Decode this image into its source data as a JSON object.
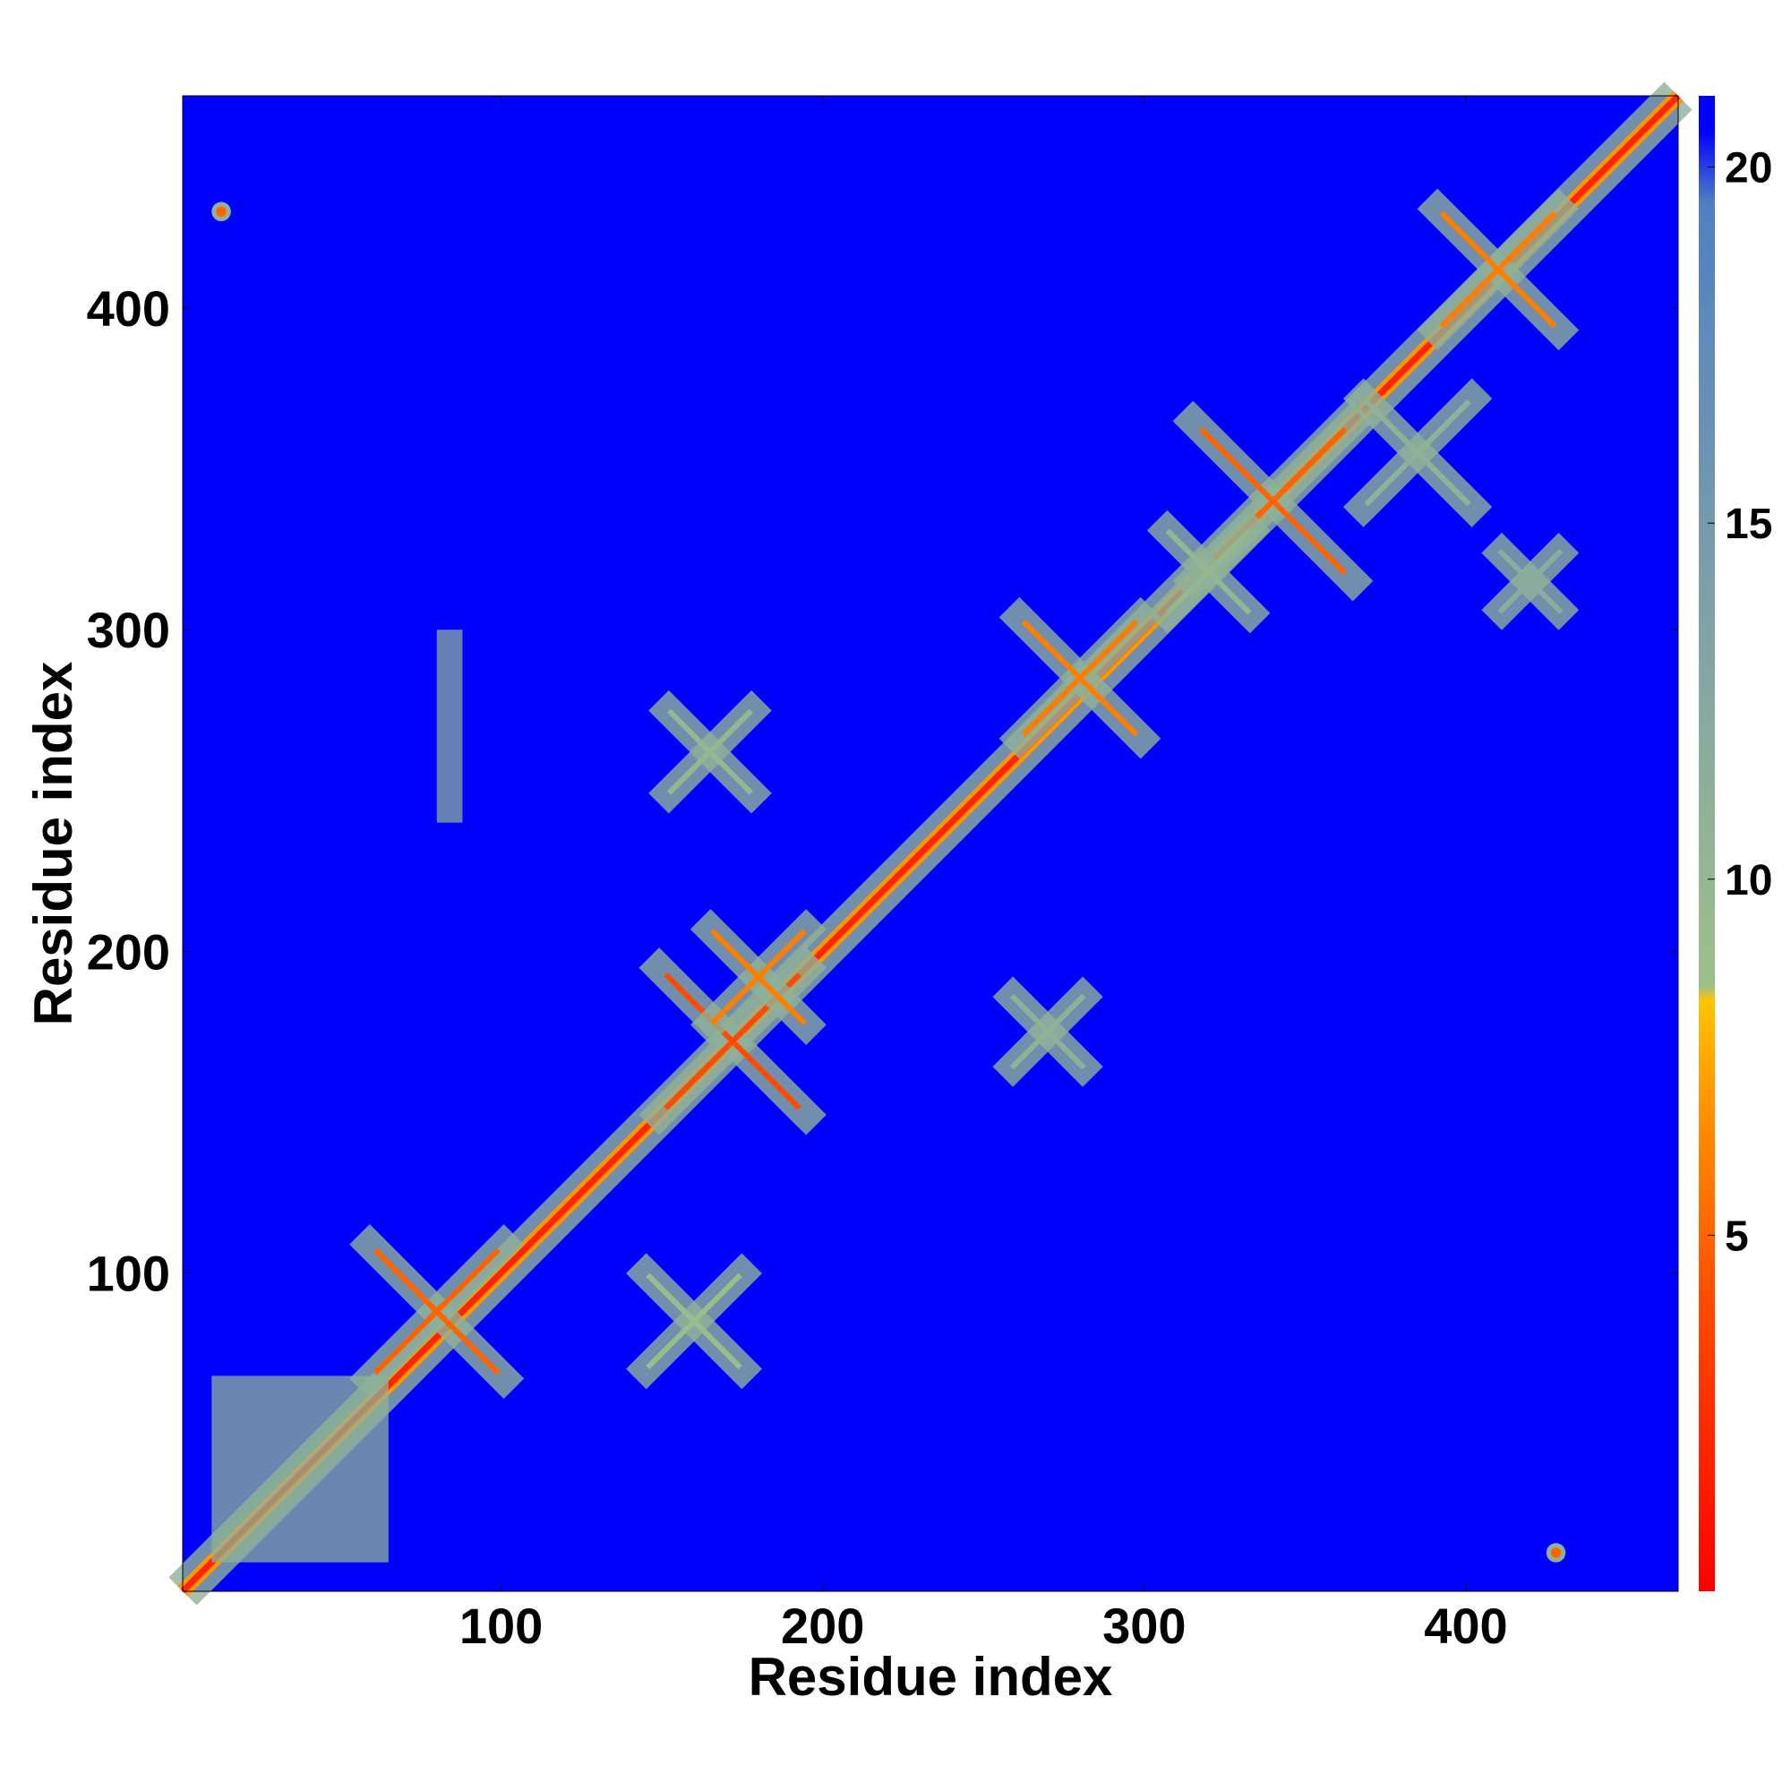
{
  "chart_data": {
    "type": "heatmap",
    "title": "",
    "xlabel": "Residue index",
    "ylabel": "Residue index",
    "xlim": [
      1,
      466
    ],
    "ylim": [
      1,
      466
    ],
    "xticks": [
      100,
      200,
      300,
      400
    ],
    "yticks": [
      100,
      200,
      300,
      400
    ],
    "colorbar": {
      "range": [
        0,
        21
      ],
      "ticks": [
        5,
        10,
        15,
        20
      ],
      "stops": [
        {
          "value": 0,
          "color": "#ff0000"
        },
        {
          "value": 4,
          "color": "#ff4a00"
        },
        {
          "value": 7,
          "color": "#ff9800"
        },
        {
          "value": 8.3,
          "color": "#ffc400"
        },
        {
          "value": 8.5,
          "color": "#9cc08a"
        },
        {
          "value": 14,
          "color": "#7f9fa8"
        },
        {
          "value": 19.5,
          "color": "#4f7fc2"
        },
        {
          "value": 20.5,
          "color": "#0000ff"
        },
        {
          "value": 21,
          "color": "#0000ff"
        }
      ]
    },
    "background_value": 21,
    "background_color": "#0000ff",
    "features": [
      {
        "kind": "diagonal",
        "from": 1,
        "to": 466,
        "value": 2,
        "halo_value": 11
      },
      {
        "kind": "x",
        "center": [
          80,
          88
        ],
        "size": 24,
        "value": 5
      },
      {
        "kind": "x",
        "center": [
          172,
          172
        ],
        "size": 26,
        "value": 4
      },
      {
        "kind": "x",
        "center": [
          180,
          192
        ],
        "size": 18,
        "value": 6
      },
      {
        "kind": "x",
        "center": [
          280,
          285
        ],
        "size": 22,
        "value": 6
      },
      {
        "kind": "x",
        "center": [
          340,
          340
        ],
        "size": 28,
        "value": 5
      },
      {
        "kind": "x",
        "center": [
          410,
          412
        ],
        "size": 22,
        "value": 6
      },
      {
        "kind": "x",
        "center": [
          160,
          85
        ],
        "size": 18,
        "value": 9
      },
      {
        "kind": "x",
        "center": [
          165,
          262
        ],
        "size": 16,
        "value": 10
      },
      {
        "kind": "x",
        "center": [
          270,
          175
        ],
        "size": 14,
        "value": 11
      },
      {
        "kind": "x",
        "center": [
          320,
          318
        ],
        "size": 16,
        "value": 10
      },
      {
        "kind": "x",
        "center": [
          385,
          355
        ],
        "size": 20,
        "value": 11
      },
      {
        "kind": "x",
        "center": [
          420,
          315
        ],
        "size": 12,
        "value": 12
      },
      {
        "kind": "block",
        "x": [
          10,
          65
        ],
        "y": [
          10,
          68
        ],
        "value": 11
      },
      {
        "kind": "block",
        "x": [
          80,
          88
        ],
        "y": [
          240,
          300
        ],
        "value": 12
      },
      {
        "kind": "contact",
        "center": [
          13,
          430
        ],
        "value": 5
      },
      {
        "kind": "contact",
        "center": [
          428,
          13
        ],
        "value": 5
      }
    ]
  }
}
